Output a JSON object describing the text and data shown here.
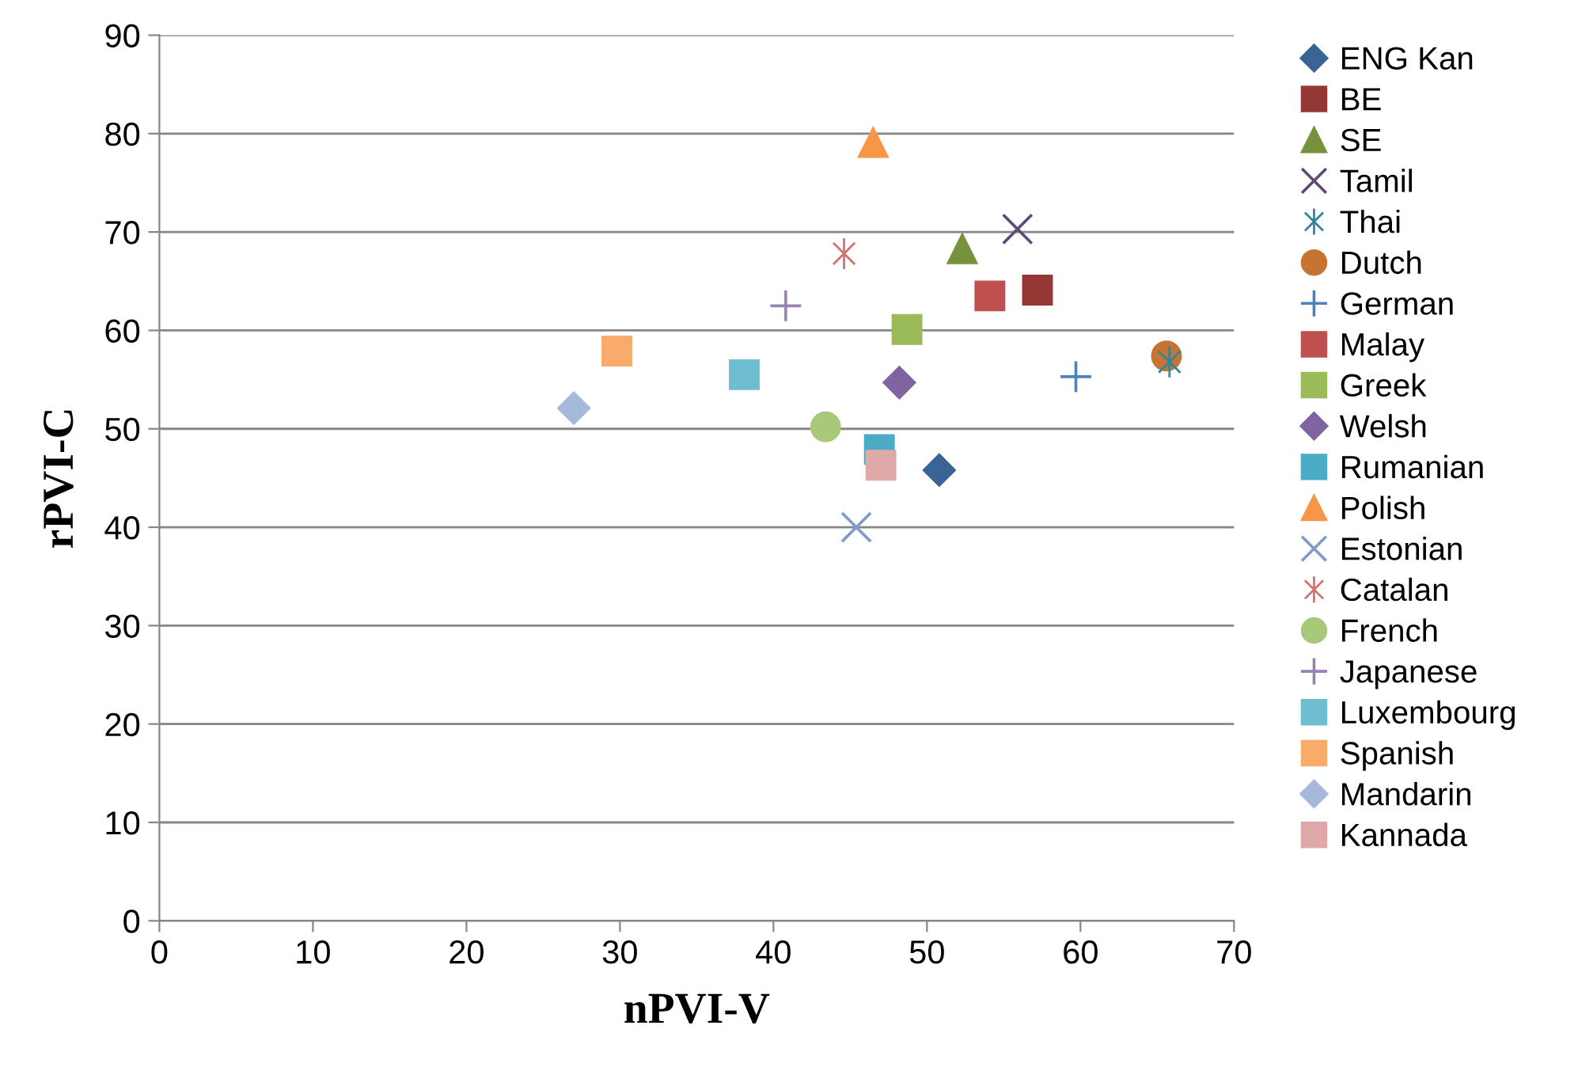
{
  "chart_data": {
    "type": "scatter",
    "xlabel": "nPVI-V",
    "ylabel": "rPVI-C",
    "xlim": [
      0,
      70
    ],
    "ylim": [
      0,
      90
    ],
    "xticks": [
      0,
      10,
      20,
      30,
      40,
      50,
      60,
      70
    ],
    "yticks": [
      0,
      10,
      20,
      30,
      40,
      50,
      60,
      70,
      80,
      90
    ],
    "grid": "y",
    "legend": "right",
    "series": [
      {
        "name": "ENG Kan",
        "color": "#3a6496",
        "marker": "diamond",
        "x": [
          50.8
        ],
        "values": [
          45.8
        ]
      },
      {
        "name": "BE",
        "color": "#953735",
        "marker": "square",
        "x": [
          57.2
        ],
        "values": [
          64.1
        ]
      },
      {
        "name": "SE",
        "color": "#76923c",
        "marker": "triangle",
        "x": [
          52.3
        ],
        "values": [
          68.3
        ]
      },
      {
        "name": "Tamil",
        "color": "#5f497a",
        "marker": "x",
        "x": [
          55.9
        ],
        "values": [
          70.3
        ]
      },
      {
        "name": "Thai",
        "color": "#31859c",
        "marker": "cross",
        "x": [
          65.8
        ],
        "values": [
          56.8
        ]
      },
      {
        "name": "Dutch",
        "color": "#c57432",
        "marker": "circle",
        "x": [
          65.6
        ],
        "values": [
          57.4
        ]
      },
      {
        "name": "German",
        "color": "#4f81bd",
        "marker": "plus",
        "x": [
          59.7
        ],
        "values": [
          55.3
        ]
      },
      {
        "name": "Malay",
        "color": "#c0504d",
        "marker": "square",
        "x": [
          54.1
        ],
        "values": [
          63.5
        ]
      },
      {
        "name": "Greek",
        "color": "#9bbb59",
        "marker": "square",
        "x": [
          48.7
        ],
        "values": [
          60.1
        ]
      },
      {
        "name": "Welsh",
        "color": "#8064a2",
        "marker": "diamond",
        "x": [
          48.2
        ],
        "values": [
          54.7
        ]
      },
      {
        "name": "Rumanian",
        "color": "#4bacc6",
        "marker": "square",
        "x": [
          46.9
        ],
        "values": [
          47.9
        ]
      },
      {
        "name": "Polish",
        "color": "#f79646",
        "marker": "triangle",
        "x": [
          46.5
        ],
        "values": [
          79.1
        ]
      },
      {
        "name": "Estonian",
        "color": "#7f9acb",
        "marker": "x",
        "x": [
          45.4
        ],
        "values": [
          40.0
        ]
      },
      {
        "name": "Catalan",
        "color": "#d07370",
        "marker": "cross",
        "x": [
          44.6
        ],
        "values": [
          67.8
        ]
      },
      {
        "name": "French",
        "color": "#a9c97a",
        "marker": "circle",
        "x": [
          43.4
        ],
        "values": [
          50.2
        ]
      },
      {
        "name": "Japanese",
        "color": "#9983b5",
        "marker": "plus",
        "x": [
          40.8
        ],
        "values": [
          62.5
        ]
      },
      {
        "name": "Luxembourg",
        "color": "#6fbdd1",
        "marker": "square",
        "x": [
          38.1
        ],
        "values": [
          55.5
        ]
      },
      {
        "name": "Spanish",
        "color": "#f9ab6b",
        "marker": "square",
        "x": [
          29.8
        ],
        "values": [
          57.9
        ]
      },
      {
        "name": "Mandarin",
        "color": "#a7b9da",
        "marker": "diamond",
        "x": [
          27.0
        ],
        "values": [
          52.1
        ]
      },
      {
        "name": "Kannada",
        "color": "#dea9a8",
        "marker": "square",
        "x": [
          47.0
        ],
        "values": [
          46.3
        ]
      }
    ]
  }
}
